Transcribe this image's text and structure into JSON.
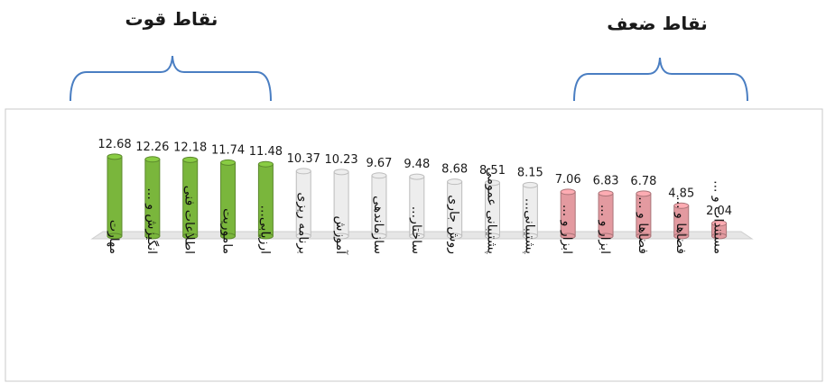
{
  "groups": {
    "strengths": {
      "title": "نقاط قوت"
    },
    "weaknesses": {
      "title": "نقاط ضعف"
    }
  },
  "colors": {
    "strength": "#7ab63c",
    "neutral": "#ededed",
    "weakness": "#e39aa0",
    "brace": "#4a7ec2",
    "floor": "#e6e6e6"
  },
  "chart_data": {
    "type": "bar",
    "title": "",
    "xlabel": "",
    "ylabel": "",
    "ylim": [
      0,
      14
    ],
    "categories": [
      "مهارت",
      "انگیزش و ...",
      "اطلاعات فنی",
      "ماموریت",
      "ارزیابی...",
      "برنامه ریزی",
      "آموزش",
      "سازماندهی",
      "ساختار...",
      "روش جاری",
      "پشتیبانی عمومی",
      "پشتیبانی...",
      "ابزار و ...",
      "ابزار و ...",
      "فضاها و ...",
      "فضاها و ...",
      "مستندات و ..."
    ],
    "values": [
      12.68,
      12.26,
      12.18,
      11.74,
      11.48,
      10.37,
      10.23,
      9.67,
      9.48,
      8.68,
      8.51,
      8.15,
      7.06,
      6.83,
      6.78,
      4.85,
      2.04
    ],
    "value_labels": [
      "12.68",
      "12.26",
      "12.18",
      "11.74",
      "11.48",
      "10.37",
      "10.23",
      "9.67",
      "9.48",
      "8.68",
      "8.51",
      "8.15",
      "7.06",
      "6.83",
      "6.78",
      "4.85",
      "2.04"
    ],
    "bar_groups": [
      "strength",
      "strength",
      "strength",
      "strength",
      "strength",
      "neutral",
      "neutral",
      "neutral",
      "neutral",
      "neutral",
      "neutral",
      "neutral",
      "weakness",
      "weakness",
      "weakness",
      "weakness",
      "weakness"
    ]
  }
}
